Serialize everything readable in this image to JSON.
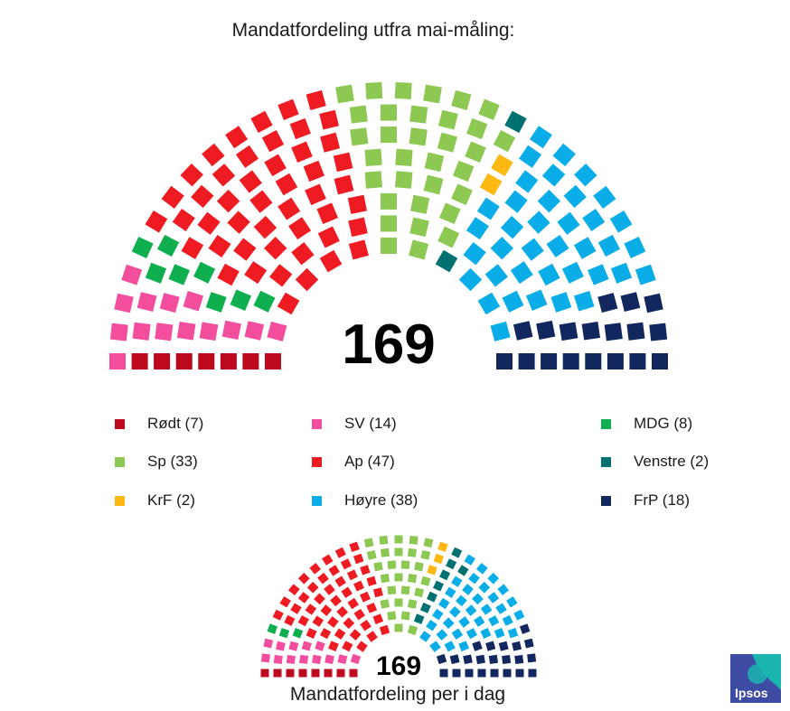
{
  "chart_data": [
    {
      "type": "parliament",
      "title": "Mandatfordeling utfra mai-måling:",
      "total_seats": 169,
      "center_label": "169",
      "parties": [
        {
          "name": "Rødt",
          "legend": "Rødt (7)",
          "seats": 7,
          "color": "#BE0A1E"
        },
        {
          "name": "SV",
          "legend": "SV (14)",
          "seats": 14,
          "color": "#F34E9E"
        },
        {
          "name": "MDG",
          "legend": "MDG (8)",
          "seats": 8,
          "color": "#0FAF50"
        },
        {
          "name": "Ap",
          "legend": "Ap (47)",
          "seats": 47,
          "color": "#EE1B22"
        },
        {
          "name": "Sp",
          "legend": "Sp (33)",
          "seats": 33,
          "color": "#8CC852"
        },
        {
          "name": "Venstre",
          "legend": "Venstre (2)",
          "seats": 2,
          "color": "#007171"
        },
        {
          "name": "KrF",
          "legend": "KrF (2)",
          "seats": 2,
          "color": "#FDB813"
        },
        {
          "name": "Høyre",
          "legend": "Høyre (38)",
          "seats": 38,
          "color": "#0AADE8"
        },
        {
          "name": "FrP",
          "legend": "FrP (18)",
          "seats": 18,
          "color": "#12275E"
        }
      ],
      "legend_order": [
        "Rødt",
        "SV",
        "MDG",
        "Sp",
        "Ap",
        "Venstre",
        "KrF",
        "Høyre",
        "FrP"
      ]
    },
    {
      "type": "parliament",
      "title": "Mandatfordeling per i dag",
      "total_seats": 169,
      "center_label": "169",
      "parties": [
        {
          "name": "Rødt",
          "seats": 8,
          "color": "#BE0A1E"
        },
        {
          "name": "SV",
          "seats": 13,
          "color": "#F34E9E"
        },
        {
          "name": "MDG",
          "seats": 3,
          "color": "#0FAF50"
        },
        {
          "name": "Ap",
          "seats": 48,
          "color": "#EE1B22"
        },
        {
          "name": "Sp",
          "seats": 28,
          "color": "#8CC852"
        },
        {
          "name": "KrF",
          "seats": 3,
          "color": "#FDB813"
        },
        {
          "name": "Venstre",
          "seats": 8,
          "color": "#007171"
        },
        {
          "name": "Høyre",
          "seats": 36,
          "color": "#0AADE8"
        },
        {
          "name": "FrP",
          "seats": 22,
          "color": "#12275E"
        }
      ]
    }
  ],
  "logo": {
    "text": "Ipsos",
    "color": "#3F4CA4",
    "accent": "#1BB5B0"
  }
}
